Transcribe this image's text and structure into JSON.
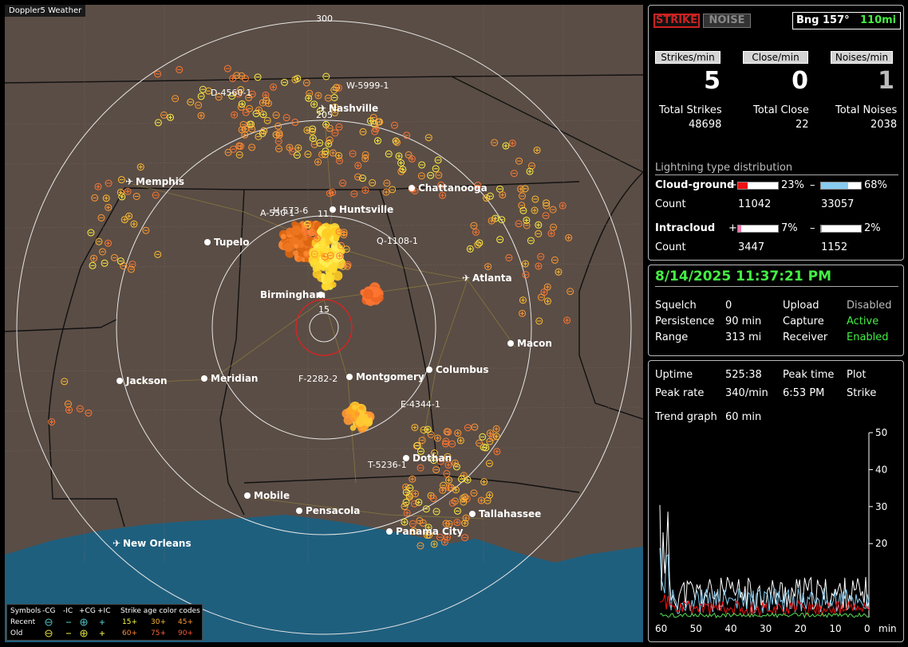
{
  "app_title": "Doppler5 Weather",
  "map": {
    "ring_labels": [
      "300",
      "205",
      "15"
    ],
    "cities": [
      {
        "name": "Nashville",
        "type": "airport"
      },
      {
        "name": "Memphis",
        "type": "airport"
      },
      {
        "name": "Chattanooga",
        "type": "city"
      },
      {
        "name": "Huntsville",
        "type": "city"
      },
      {
        "name": "Tupelo",
        "type": "city"
      },
      {
        "name": "Atlanta",
        "type": "airport"
      },
      {
        "name": "Birmingham",
        "type": "city"
      },
      {
        "name": "Macon",
        "type": "city"
      },
      {
        "name": "Jackson",
        "type": "city"
      },
      {
        "name": "Meridian",
        "type": "city"
      },
      {
        "name": "Montgomery",
        "type": "city"
      },
      {
        "name": "Columbus",
        "type": "city"
      },
      {
        "name": "Dothan",
        "type": "city"
      },
      {
        "name": "Mobile",
        "type": "city"
      },
      {
        "name": "Pensacola",
        "type": "city"
      },
      {
        "name": "Tallahassee",
        "type": "city"
      },
      {
        "name": "Panama City",
        "type": "city"
      },
      {
        "name": "New Orleans",
        "type": "airport"
      }
    ],
    "detections": [
      "D-4560-1",
      "W-5999-1",
      "A-550-1",
      "H-573-6",
      "11",
      "Q-1108-1",
      "F-2282-2",
      "E-4344-1",
      "T-5236-1"
    ]
  },
  "legend": {
    "symbols_label": "Symbols",
    "cols": [
      "-CG",
      "-IC",
      "+CG",
      "+IC"
    ],
    "age_title": "Strike age color codes",
    "recent_label": "Recent",
    "old_label": "Old",
    "recent_ages": [
      "15+",
      "30+",
      "45+"
    ],
    "old_ages": [
      "60+",
      "75+",
      "90+"
    ]
  },
  "top_panel": {
    "strike_btn": "STRIKE",
    "noise_btn": "NOISE",
    "bearing": "Bng 157°",
    "distance": "110mi",
    "strikes_min_label": "Strikes/min",
    "close_min_label": "Close/min",
    "noises_min_label": "Noises/min",
    "strikes_min": "5",
    "close_min": "0",
    "noises_min": "1",
    "total_strikes_label": "Total Strikes",
    "total_close_label": "Total Close",
    "total_noises_label": "Total Noises",
    "total_strikes": "48698",
    "total_close": "22",
    "total_noises": "2038",
    "dist_title": "Lightning type distribution",
    "cg_label": "Cloud-ground",
    "ic_label": "Intracloud",
    "plus": "+",
    "minus": "–",
    "count_label": "Count",
    "cg_pos_pct": "23%",
    "cg_neg_pct": "68%",
    "cg_pos_count": "11042",
    "cg_neg_count": "33057",
    "ic_pos_pct": "7%",
    "ic_neg_pct": "2%",
    "ic_pos_count": "3447",
    "ic_neg_count": "1152",
    "bars": {
      "cg_pos": 0.23,
      "cg_neg": 0.68,
      "ic_pos": 0.07,
      "ic_neg": 0.02
    },
    "colors": {
      "strike_red": "#cc2222",
      "bar_cg_pos": "#ee1111",
      "bar_cg_neg": "#88ccf0",
      "bar_ic_pos": "#ee77aa",
      "bar_ic_neg": "#55dd55"
    }
  },
  "status_panel": {
    "datetime": "8/14/2025 11:37:21 PM",
    "squelch_label": "Squelch",
    "squelch": "0",
    "persistence_label": "Persistence",
    "persistence": "90 min",
    "range_label": "Range",
    "range": "313 mi",
    "upload_label": "Upload",
    "upload": "Disabled",
    "capture_label": "Capture",
    "capture": "Active",
    "receiver_label": "Receiver",
    "receiver": "Enabled"
  },
  "trend_panel": {
    "uptime_label": "Uptime",
    "uptime": "525:38",
    "peak_time_label": "Peak time",
    "peak_time": "6:53 PM",
    "plot_label": "Plot",
    "peak_rate_label": "Peak rate",
    "peak_rate": "340/min",
    "plot_value": "Strike",
    "trend_label": "Trend graph",
    "trend_value": "60 min",
    "chart_data": {
      "type": "line",
      "xlabel": "min",
      "x_ticks": [
        "60",
        "50",
        "40",
        "30",
        "20",
        "10",
        "0"
      ],
      "y_ticks": [
        "50",
        "40",
        "30",
        "20"
      ],
      "ylim": [
        0,
        50
      ],
      "xlim": [
        60,
        0
      ]
    }
  }
}
